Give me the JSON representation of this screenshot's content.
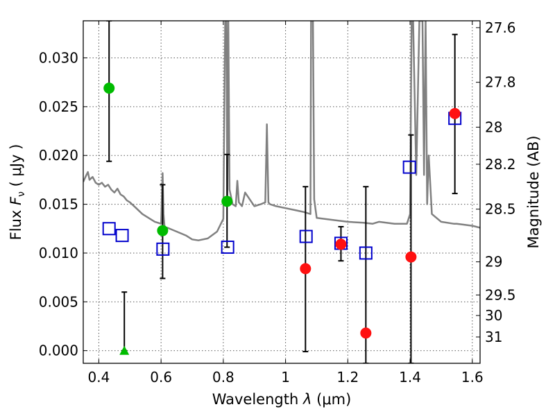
{
  "chart_data": {
    "type": "scatter",
    "title": "",
    "xlabel": "Wavelength  λ (μm)",
    "ylabel": "Flux  F_ν  ( μJy )",
    "ylabel_parts": {
      "prefix": "Flux  ",
      "symbol": "F",
      "subscript": "ν",
      "suffix": "  ( μJy )"
    },
    "xlabel_parts": {
      "prefix": "Wavelength  ",
      "symbol": "λ",
      "suffix": " (μm)"
    },
    "y2label": "Magnitude (AB)",
    "xlim": [
      0.35,
      1.625
    ],
    "ylim": [
      -0.0013,
      0.0338
    ],
    "grid": true,
    "x_ticks": [
      {
        "value": 0.4,
        "label": "0.4"
      },
      {
        "value": 0.6,
        "label": "0.6"
      },
      {
        "value": 0.8,
        "label": "0.8"
      },
      {
        "value": 1.0,
        "label": "1"
      },
      {
        "value": 1.2,
        "label": "1.2"
      },
      {
        "value": 1.4,
        "label": "1.4"
      },
      {
        "value": 1.6,
        "label": "1.6"
      }
    ],
    "y_ticks": [
      {
        "value": 0.0,
        "label": "0.000"
      },
      {
        "value": 0.005,
        "label": "0.005"
      },
      {
        "value": 0.01,
        "label": "0.010"
      },
      {
        "value": 0.015,
        "label": "0.015"
      },
      {
        "value": 0.02,
        "label": "0.020"
      },
      {
        "value": 0.025,
        "label": "0.025"
      },
      {
        "value": 0.03,
        "label": "0.030"
      }
    ],
    "right_ticks": [
      {
        "flux": 0.0331,
        "label": "27.6"
      },
      {
        "flux": 0.0275,
        "label": "27.8"
      },
      {
        "flux": 0.0229,
        "label": "28"
      },
      {
        "flux": 0.0191,
        "label": "28.2"
      },
      {
        "flux": 0.0145,
        "label": "28.5"
      },
      {
        "flux": 0.0091,
        "label": "29"
      },
      {
        "flux": 0.0057,
        "label": "29.5"
      },
      {
        "flux": 0.0036,
        "label": "30"
      },
      {
        "flux": 0.0014,
        "label": "31"
      }
    ],
    "colors": {
      "model": "#808080",
      "detection": "#00bb00",
      "red": "#ff1111",
      "model_box": "#0000cc",
      "errorbar": "#000000",
      "grid": "#555555"
    },
    "series": [
      {
        "name": "model spectrum",
        "kind": "line",
        "x": [
          0.35,
          0.36,
          0.365,
          0.37,
          0.38,
          0.39,
          0.4,
          0.41,
          0.42,
          0.43,
          0.44,
          0.45,
          0.46,
          0.47,
          0.48,
          0.49,
          0.5,
          0.52,
          0.54,
          0.56,
          0.58,
          0.6,
          0.605,
          0.608,
          0.611,
          0.615,
          0.62,
          0.65,
          0.68,
          0.7,
          0.72,
          0.75,
          0.78,
          0.8,
          0.806,
          0.81,
          0.813,
          0.816,
          0.82,
          0.83,
          0.84,
          0.845,
          0.85,
          0.86,
          0.87,
          0.9,
          0.92,
          0.935,
          0.94,
          0.945,
          0.95,
          0.97,
          1.0,
          1.03,
          1.06,
          1.08,
          1.082,
          1.085,
          1.088,
          1.092,
          1.1,
          1.15,
          1.2,
          1.25,
          1.28,
          1.3,
          1.35,
          1.39,
          1.4,
          1.405,
          1.41,
          1.42,
          1.43,
          1.44,
          1.445,
          1.45,
          1.455,
          1.46,
          1.47,
          1.5,
          1.54,
          1.545,
          1.55,
          1.6,
          1.625
        ],
        "y": [
          0.0173,
          0.018,
          0.0183,
          0.0175,
          0.0178,
          0.0172,
          0.017,
          0.0172,
          0.0168,
          0.017,
          0.0165,
          0.0162,
          0.0166,
          0.016,
          0.0158,
          0.0154,
          0.0152,
          0.0146,
          0.014,
          0.0136,
          0.0132,
          0.013,
          0.0182,
          0.014,
          0.0128,
          0.0126,
          0.0126,
          0.0122,
          0.0118,
          0.0114,
          0.0113,
          0.0115,
          0.0122,
          0.0135,
          0.0338,
          0.0338,
          0.015,
          0.0338,
          0.0165,
          0.015,
          0.0148,
          0.0174,
          0.0152,
          0.0148,
          0.0162,
          0.0148,
          0.015,
          0.0152,
          0.0232,
          0.0152,
          0.015,
          0.0148,
          0.0146,
          0.0144,
          0.0142,
          0.014,
          0.0338,
          0.0338,
          0.0338,
          0.0155,
          0.0136,
          0.0134,
          0.0132,
          0.0131,
          0.013,
          0.0132,
          0.013,
          0.013,
          0.014,
          0.0338,
          0.0338,
          0.018,
          0.0338,
          0.0338,
          0.018,
          0.0338,
          0.015,
          0.02,
          0.014,
          0.0132,
          0.013,
          0.013,
          0.013,
          0.0128,
          0.0126
        ]
      },
      {
        "name": "detections",
        "kind": "points",
        "marker": "circle",
        "color": "#00bb00",
        "points": [
          {
            "x": 0.433,
            "y": 0.0269,
            "lo": 0.0194,
            "hi": 0.0338
          },
          {
            "x": 0.605,
            "y": 0.0123,
            "lo": 0.0074,
            "hi": 0.017
          },
          {
            "x": 0.812,
            "y": 0.0153,
            "lo": 0.0106,
            "hi": 0.0201
          }
        ]
      },
      {
        "name": "upper limit",
        "kind": "points",
        "marker": "triangle",
        "color": "#00bb00",
        "points": [
          {
            "x": 0.482,
            "y": 0.0,
            "lo": 0.0,
            "hi": 0.006
          }
        ]
      },
      {
        "name": "non-detections",
        "kind": "points",
        "marker": "circle",
        "color": "#ff1111",
        "points": [
          {
            "x": 1.064,
            "y": 0.0084,
            "lo": -0.0001,
            "hi": 0.0168
          },
          {
            "x": 1.178,
            "y": 0.0109,
            "lo": 0.0092,
            "hi": 0.0127
          },
          {
            "x": 1.258,
            "y": 0.0018,
            "lo": -0.0013,
            "hi": 0.0168
          },
          {
            "x": 1.403,
            "y": 0.0096,
            "lo": -0.0013,
            "hi": 0.0221
          },
          {
            "x": 1.544,
            "y": 0.0243,
            "lo": 0.0161,
            "hi": 0.0324
          }
        ]
      },
      {
        "name": "model photometry",
        "kind": "points",
        "marker": "square",
        "color": "#0000cc",
        "points": [
          {
            "x": 0.433,
            "y": 0.0125
          },
          {
            "x": 0.475,
            "y": 0.0118
          },
          {
            "x": 0.606,
            "y": 0.0104
          },
          {
            "x": 0.814,
            "y": 0.0106
          },
          {
            "x": 1.066,
            "y": 0.0117
          },
          {
            "x": 1.178,
            "y": 0.011
          },
          {
            "x": 1.258,
            "y": 0.01
          },
          {
            "x": 1.398,
            "y": 0.0188
          },
          {
            "x": 1.544,
            "y": 0.0238
          }
        ]
      }
    ]
  }
}
